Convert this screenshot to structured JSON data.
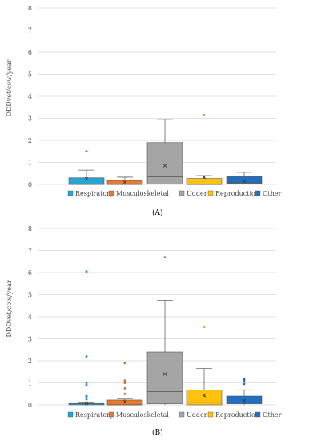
{
  "chart_data": [
    {
      "panel": "(A)",
      "type": "box",
      "ylabel": "DDDvet/cow/year",
      "ylim": [
        0,
        8
      ],
      "yticks": [
        0,
        1,
        2,
        3,
        4,
        5,
        6,
        7,
        8
      ],
      "grid": true,
      "legend": "bottom",
      "series": [
        {
          "name": "Respiratory",
          "color": "#27a3d4",
          "min": 0.0,
          "q1": 0.0,
          "median": 0.0,
          "q3": 0.3,
          "max": 0.65,
          "mean": 0.25,
          "outliers": [
            1.5
          ]
        },
        {
          "name": "Musculoskeletal",
          "color": "#ea7a2b",
          "min": 0.0,
          "q1": 0.0,
          "median": 0.0,
          "q3": 0.18,
          "max": 0.33,
          "mean": 0.1,
          "outliers": []
        },
        {
          "name": "Udder",
          "color": "#a5a5a5",
          "min": 0.0,
          "q1": 0.02,
          "median": 0.35,
          "q3": 1.9,
          "max": 2.95,
          "mean": 0.85,
          "outliers": []
        },
        {
          "name": "Reproduction",
          "color": "#ffc20e",
          "min": 0.0,
          "q1": 0.0,
          "median": 0.0,
          "q3": 0.27,
          "max": 0.4,
          "mean": 0.33,
          "outliers": [
            3.15
          ]
        },
        {
          "name": "Other",
          "color": "#1f6fc4",
          "min": 0.0,
          "q1": 0.05,
          "median": 0.1,
          "q3": 0.35,
          "max": 0.55,
          "mean": 0.15,
          "outliers": []
        }
      ]
    },
    {
      "panel": "(B)",
      "type": "box",
      "ylabel": "DDDvet/cow/year",
      "ylim": [
        0,
        8
      ],
      "yticks": [
        0,
        1,
        2,
        3,
        4,
        5,
        6,
        7,
        8
      ],
      "grid": true,
      "legend": "bottom",
      "series": [
        {
          "name": "Respiratory",
          "color": "#27a3d4",
          "min": 0.0,
          "q1": 0.0,
          "median": 0.05,
          "q3": 0.1,
          "max": 0.12,
          "mean": 0.07,
          "outliers": [
            0.25,
            0.35,
            0.4,
            0.9,
            1.0,
            2.2,
            6.05
          ]
        },
        {
          "name": "Musculoskeletal",
          "color": "#ea7a2b",
          "min": 0.0,
          "q1": 0.0,
          "median": 0.0,
          "q3": 0.22,
          "max": 0.3,
          "mean": 0.15,
          "outliers": [
            0.5,
            0.75,
            1.0,
            1.1,
            1.9
          ]
        },
        {
          "name": "Udder",
          "color": "#a5a5a5",
          "min": 0.0,
          "q1": 0.05,
          "median": 0.6,
          "q3": 2.4,
          "max": 4.75,
          "mean": 1.4,
          "outliers": [
            6.7
          ]
        },
        {
          "name": "Reproduction",
          "color": "#ffc20e",
          "min": 0.0,
          "q1": 0.0,
          "median": 0.1,
          "q3": 0.68,
          "max": 1.65,
          "mean": 0.42,
          "outliers": [
            3.55
          ]
        },
        {
          "name": "Other",
          "color": "#1f6fc4",
          "min": 0.0,
          "q1": 0.05,
          "median": 0.1,
          "q3": 0.4,
          "max": 0.68,
          "mean": 0.2,
          "outliers": [
            0.95,
            1.1,
            1.18
          ]
        }
      ]
    }
  ]
}
